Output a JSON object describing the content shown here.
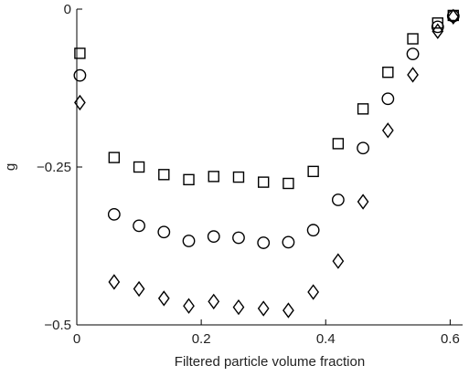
{
  "chart_data": {
    "type": "scatter",
    "title": "",
    "xlabel": "Filtered particle volume fraction",
    "ylabel": "g",
    "xlim": [
      0,
      0.62
    ],
    "ylim": [
      -0.5,
      0
    ],
    "xticks": [
      {
        "value": 0,
        "label": "0"
      },
      {
        "value": 0.2,
        "label": "0.2"
      },
      {
        "value": 0.4,
        "label": "0.4"
      },
      {
        "value": 0.6,
        "label": "0.6"
      }
    ],
    "yticks": [
      {
        "value": 0,
        "label": "0"
      },
      {
        "value": -0.25,
        "label": "−0.25"
      },
      {
        "value": -0.5,
        "label": "−0.5"
      }
    ],
    "grid": false,
    "legend": "none",
    "series": [
      {
        "marker": "square",
        "x": [
          0.005,
          0.06,
          0.1,
          0.14,
          0.18,
          0.22,
          0.26,
          0.3,
          0.34,
          0.38,
          0.42,
          0.46,
          0.5,
          0.54,
          0.58,
          0.605
        ],
        "y": [
          -0.07,
          -0.235,
          -0.25,
          -0.262,
          -0.27,
          -0.265,
          -0.266,
          -0.274,
          -0.276,
          -0.257,
          -0.213,
          -0.158,
          -0.1,
          -0.047,
          -0.022,
          -0.01
        ]
      },
      {
        "marker": "circle",
        "x": [
          0.005,
          0.06,
          0.1,
          0.14,
          0.18,
          0.22,
          0.26,
          0.3,
          0.34,
          0.38,
          0.42,
          0.46,
          0.5,
          0.54,
          0.58,
          0.605
        ],
        "y": [
          -0.105,
          -0.325,
          -0.343,
          -0.353,
          -0.367,
          -0.36,
          -0.362,
          -0.37,
          -0.369,
          -0.35,
          -0.302,
          -0.22,
          -0.142,
          -0.071,
          -0.028,
          -0.011
        ]
      },
      {
        "marker": "diamond",
        "x": [
          0.005,
          0.06,
          0.1,
          0.14,
          0.18,
          0.22,
          0.26,
          0.3,
          0.34,
          0.38,
          0.42,
          0.46,
          0.5,
          0.54,
          0.58,
          0.605
        ],
        "y": [
          -0.148,
          -0.432,
          -0.443,
          -0.458,
          -0.47,
          -0.463,
          -0.472,
          -0.474,
          -0.477,
          -0.448,
          -0.399,
          -0.305,
          -0.192,
          -0.104,
          -0.035,
          -0.012
        ]
      }
    ]
  }
}
